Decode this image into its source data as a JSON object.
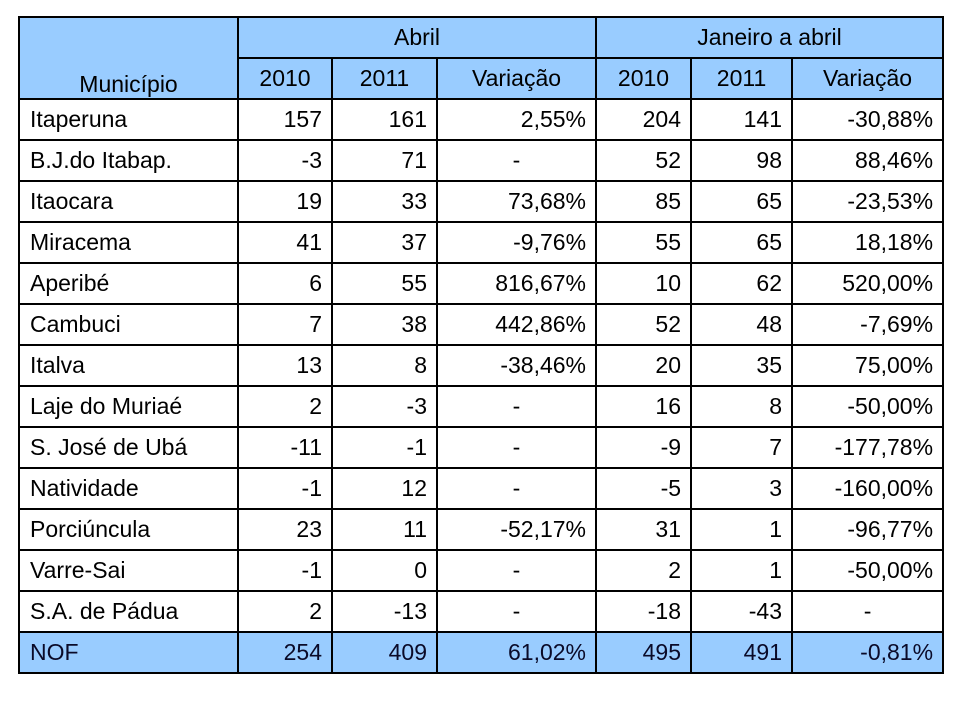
{
  "colors": {
    "header_bg": "#99CCFF",
    "total_row_bg": "#99CCFF",
    "border": "#000000",
    "text": "#000000",
    "row_bg": "#FFFFFF"
  },
  "chart_data": {
    "type": "table",
    "row_header": "Município",
    "column_groups": [
      {
        "label": "Abril",
        "span": 3
      },
      {
        "label": "Janeiro a abril",
        "span": 3
      }
    ],
    "sub_headers": [
      "2010",
      "2011",
      "Variação",
      "2010",
      "2011",
      "Variação"
    ],
    "rows": [
      {
        "municipio": "Itaperuna",
        "values": [
          "157",
          "161",
          "2,55%",
          "204",
          "141",
          "-30,88%"
        ]
      },
      {
        "municipio": "B.J.do Itabap.",
        "values": [
          "-3",
          "71",
          "-",
          "52",
          "98",
          "88,46%"
        ]
      },
      {
        "municipio": "Itaocara",
        "values": [
          "19",
          "33",
          "73,68%",
          "85",
          "65",
          "-23,53%"
        ]
      },
      {
        "municipio": "Miracema",
        "values": [
          "41",
          "37",
          "-9,76%",
          "55",
          "65",
          "18,18%"
        ]
      },
      {
        "municipio": "Aperibé",
        "values": [
          "6",
          "55",
          "816,67%",
          "10",
          "62",
          "520,00%"
        ]
      },
      {
        "municipio": "Cambuci",
        "values": [
          "7",
          "38",
          "442,86%",
          "52",
          "48",
          "-7,69%"
        ]
      },
      {
        "municipio": "Italva",
        "values": [
          "13",
          "8",
          "-38,46%",
          "20",
          "35",
          "75,00%"
        ]
      },
      {
        "municipio": "Laje do Muriaé",
        "values": [
          "2",
          "-3",
          "-",
          "16",
          "8",
          "-50,00%"
        ]
      },
      {
        "municipio": "S. José de Ubá",
        "values": [
          "-11",
          "-1",
          "-",
          "-9",
          "7",
          "-177,78%"
        ]
      },
      {
        "municipio": "Natividade",
        "values": [
          "-1",
          "12",
          "-",
          "-5",
          "3",
          "-160,00%"
        ]
      },
      {
        "municipio": "Porciúncula",
        "values": [
          "23",
          "11",
          "-52,17%",
          "31",
          "1",
          "-96,77%"
        ]
      },
      {
        "municipio": "Varre-Sai",
        "values": [
          "-1",
          "0",
          "-",
          "2",
          "1",
          "-50,00%"
        ]
      },
      {
        "municipio": "S.A. de Pádua",
        "values": [
          "2",
          "-13",
          "-",
          "-18",
          "-43",
          "-"
        ]
      }
    ],
    "total_row": {
      "municipio": "NOF",
      "values": [
        "254",
        "409",
        "61,02%",
        "495",
        "491",
        "-0,81%"
      ]
    }
  }
}
